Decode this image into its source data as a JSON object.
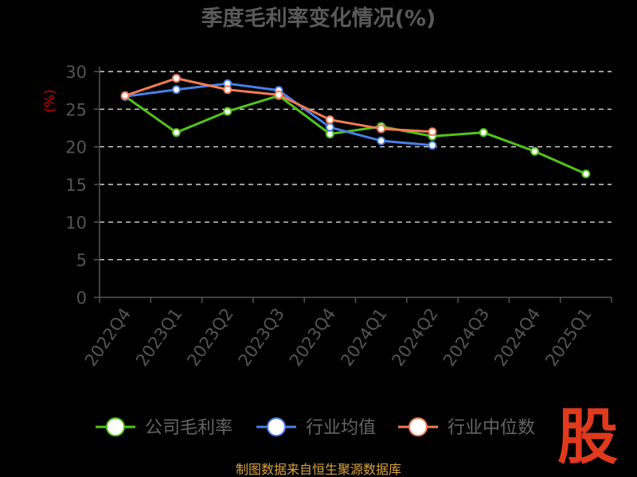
{
  "chart_data": {
    "type": "line",
    "title": "季度毛利率变化情况(%)",
    "ylabel": "(%)",
    "xlabel": "",
    "ylim": [
      0,
      30
    ],
    "yticks": [
      0,
      5,
      10,
      15,
      20,
      25,
      30
    ],
    "grid": "horizontal-dashed",
    "legend_position": "bottom",
    "categories": [
      "2022Q4",
      "2023Q1",
      "2023Q2",
      "2023Q3",
      "2023Q4",
      "2024Q1",
      "2024Q2",
      "2024Q3",
      "2024Q4",
      "2025Q1"
    ],
    "series": [
      {
        "name": "公司毛利率",
        "color": "#52c41a",
        "values": [
          26.7,
          21.9,
          24.7,
          26.8,
          21.7,
          22.7,
          21.4,
          21.9,
          19.4,
          16.4
        ]
      },
      {
        "name": "行业均值",
        "color": "#4a7fe8",
        "values": [
          26.7,
          27.6,
          28.4,
          27.5,
          22.6,
          20.8,
          20.2,
          null,
          null,
          null
        ]
      },
      {
        "name": "行业中位数",
        "color": "#f47b55",
        "values": [
          26.8,
          29.1,
          27.6,
          26.9,
          23.6,
          22.4,
          22.0,
          null,
          null,
          null
        ]
      }
    ]
  },
  "logo_text": "股",
  "source_text": "制图数据来自恒生聚源数据库"
}
